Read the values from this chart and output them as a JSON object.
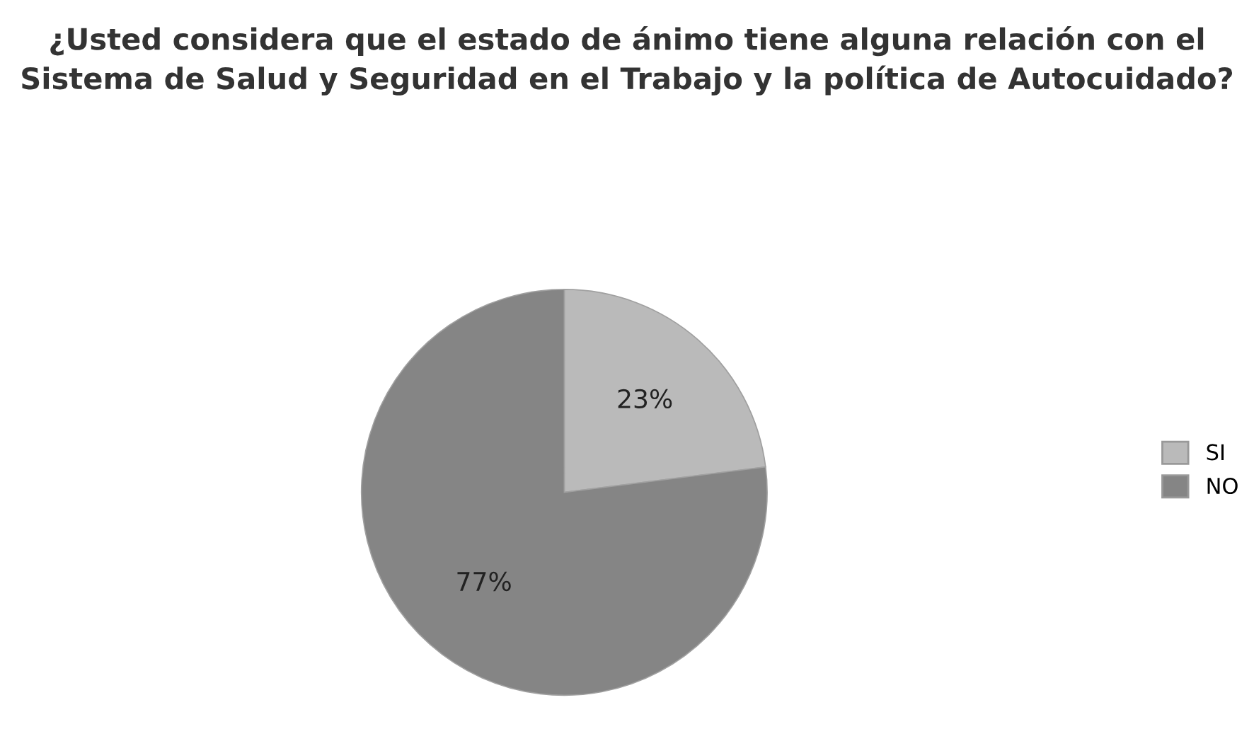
{
  "chart_data": {
    "type": "pie",
    "title": "¿Usted considera que el estado de ánimo tiene alguna relación con el Sistema de Salud y Seguridad en el Trabajo y la política de Autocuidado?",
    "categories": [
      "SI",
      "NO"
    ],
    "values": [
      23,
      77
    ],
    "colors": [
      "#bababa",
      "#858585"
    ],
    "value_labels": [
      "23%",
      "77%"
    ],
    "legend": "right"
  }
}
